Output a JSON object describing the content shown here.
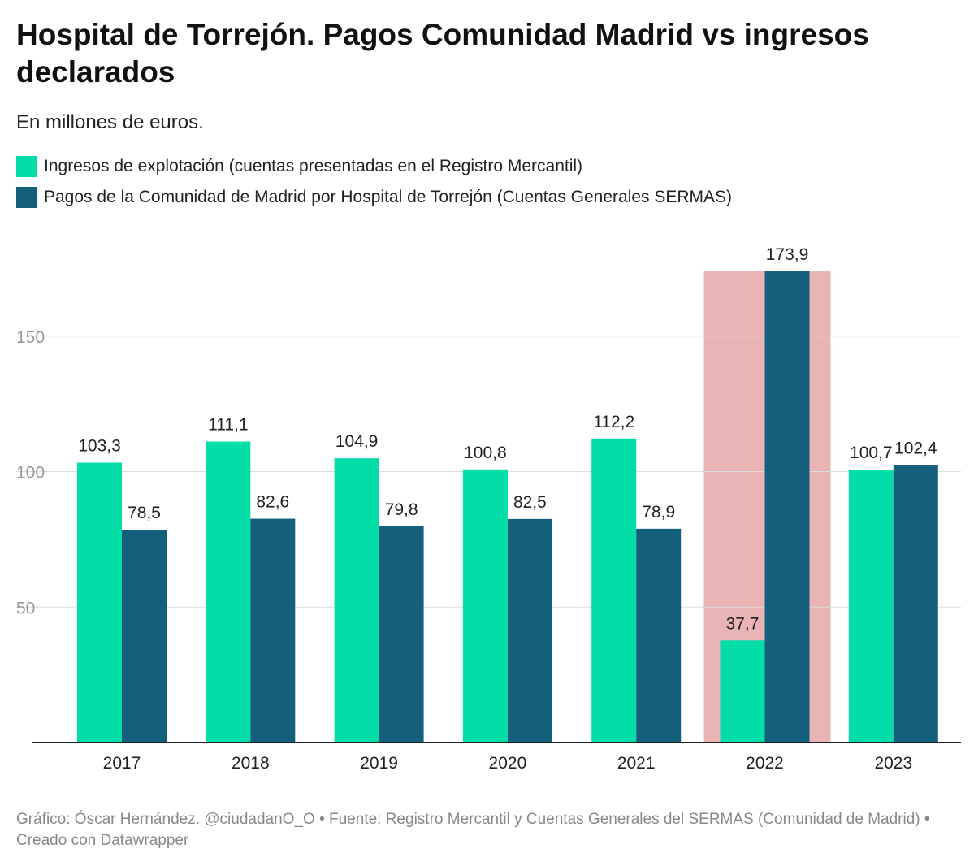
{
  "title": "Hospital de Torrejón. Pagos Comunidad Madrid vs ingresos declarados",
  "subtitle": "En millones de euros.",
  "colors": {
    "ingresos": "#03dda8",
    "pagos": "#145f7b",
    "highlight": "#eab4b4",
    "grid": "#dddddd",
    "axis": "#222222",
    "tick": "#999999"
  },
  "chart_data": {
    "type": "bar",
    "categories": [
      "2017",
      "2018",
      "2019",
      "2020",
      "2021",
      "2022",
      "2023"
    ],
    "series": [
      {
        "name": "Ingresos de explotación (cuentas presentadas en el Registro Mercantil)",
        "values": [
          103.3,
          111.1,
          104.9,
          100.8,
          112.2,
          37.7,
          100.7
        ],
        "labels": [
          "103,3",
          "111,1",
          "104,9",
          "100,8",
          "112,2",
          "37,7",
          "100,7"
        ]
      },
      {
        "name": "Pagos de la Comunidad de Madrid por Hospital de Torrejón (Cuentas Generales SERMAS)",
        "values": [
          78.5,
          82.6,
          79.8,
          82.5,
          78.9,
          173.9,
          102.4
        ],
        "labels": [
          "78,5",
          "82,6",
          "79,8",
          "82,5",
          "78,9",
          "173,9",
          "102,4"
        ]
      }
    ],
    "highlight_category": "2022",
    "yticks": [
      50,
      100,
      150
    ],
    "ytick_labels": [
      "50",
      "100",
      "150"
    ],
    "ylim": [
      0,
      180
    ],
    "grid": true,
    "legend_position": "top-left"
  },
  "footer": "Gráfico: Óscar Hernández. @ciudadanO_O • Fuente: Registro Mercantil y Cuentas Generales del SERMAS (Comunidad de Madrid) • Creado con Datawrapper"
}
